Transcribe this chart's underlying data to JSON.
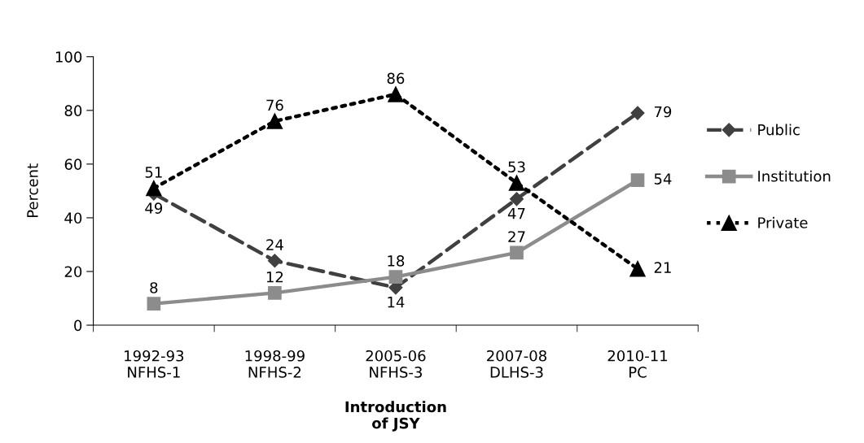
{
  "chart_data": {
    "type": "line",
    "ylabel": "Percent",
    "xlabel": "Introduction\nof JSY",
    "categories": [
      "1992-93\nNFHS-1",
      "1998-99\nNFHS-2",
      "2005-06\nNFHS-3",
      "2007-08\nDLHS-3",
      "2010-11\nPC"
    ],
    "series": [
      {
        "name": "Public",
        "color": "#404040",
        "values": [
          49,
          24,
          14,
          47,
          79
        ],
        "marker": "diamond",
        "line_style": "dashed"
      },
      {
        "name": "Institution",
        "color": "#8c8c8c",
        "values": [
          8,
          12,
          18,
          27,
          54
        ],
        "marker": "square",
        "line_style": "solid"
      },
      {
        "name": "Private",
        "color": "#000000",
        "values": [
          51,
          76,
          86,
          53,
          21
        ],
        "marker": "triangle",
        "line_style": "dotted"
      }
    ],
    "ylim": [
      0,
      100
    ],
    "yticks": [
      0,
      20,
      40,
      60,
      80,
      100
    ],
    "grid": false,
    "legend": "right",
    "data_labels": true
  }
}
